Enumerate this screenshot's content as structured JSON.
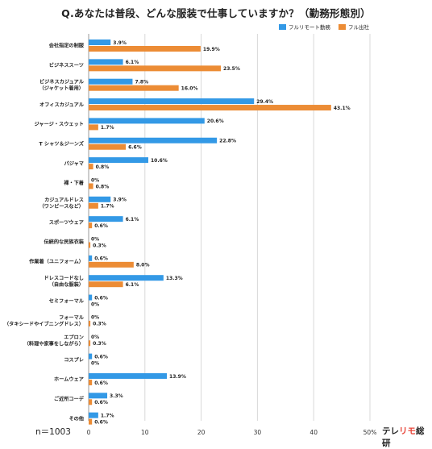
{
  "page_title": "Q.あなたは普段、どんな服装で仕事していますか？（勤務形態別）",
  "sample_size": "n＝1003",
  "brand": {
    "part1": "テレ",
    "part2": "リモ",
    "part3": "総研"
  },
  "colors": {
    "remote": "#3399e6",
    "office": "#ec8c35",
    "brand_accent": "#e8463a",
    "grid": "#d9d9d9"
  },
  "chart_data": {
    "type": "bar",
    "orientation": "horizontal",
    "title": "Q.あなたは普段、どんな服装で仕事していますか？（勤務形態別）",
    "xlim": [
      0,
      50
    ],
    "x_ticks": [
      "0",
      "10",
      "20",
      "30",
      "40",
      "50%"
    ],
    "x_tick_values": [
      0,
      10,
      20,
      30,
      40,
      50
    ],
    "grid": true,
    "legend_position": "top-right",
    "categories": [
      [
        "会社指定の制服"
      ],
      [
        "ビジネススーツ"
      ],
      [
        "ビジネスカジュアル",
        "（ジャケット着用）"
      ],
      [
        "オフィスカジュアル"
      ],
      [
        "ジャージ・スウェット"
      ],
      [
        "T シャツ＆ジーンズ"
      ],
      [
        "パジャマ"
      ],
      [
        "裸・下着"
      ],
      [
        "カジュアルドレス",
        "（ワンピースなど）"
      ],
      [
        "スポーツウェア"
      ],
      [
        "伝統的な民族衣装"
      ],
      [
        "作業着（ユニフォーム）"
      ],
      [
        "ドレスコードなし",
        "（自由な服装）"
      ],
      [
        "セミフォーマル"
      ],
      [
        "フォーマル",
        "（タキシードやイブニングドレス）"
      ],
      [
        "エプロン",
        "（料理や家事をしながら）"
      ],
      [
        "コスプレ"
      ],
      [
        "ホームウェア"
      ],
      [
        "ご近所コーデ"
      ],
      [
        "その他"
      ]
    ],
    "series": [
      {
        "name": "フルリモート勤務",
        "values": [
          3.9,
          6.1,
          7.8,
          29.4,
          20.6,
          22.8,
          10.6,
          0,
          3.9,
          6.1,
          0,
          0.6,
          13.3,
          0.6,
          0,
          0,
          0.6,
          13.9,
          3.3,
          1.7
        ]
      },
      {
        "name": "フル出社",
        "values": [
          19.9,
          23.5,
          16.0,
          43.1,
          1.7,
          6.6,
          0.8,
          0.8,
          1.7,
          0.6,
          0.3,
          8.0,
          6.1,
          0,
          0.3,
          0.3,
          0,
          0.6,
          0.6,
          0.6
        ]
      }
    ]
  }
}
